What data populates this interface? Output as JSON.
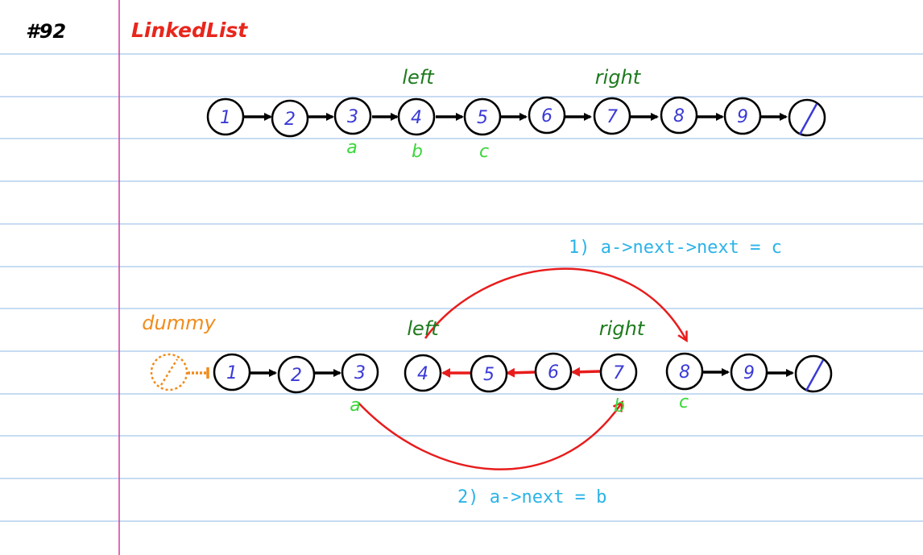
{
  "page_number": "#92",
  "title": "LinkedList",
  "colors": {
    "paper_line": "#8fb8e6",
    "margin_line": "#d63c9c",
    "title": "#e8261c",
    "node_text": "#3a3ad6",
    "green_label": "#1e7a1e",
    "pointer_label": "#3bd63b",
    "red_arrow": "#e81c1c",
    "dummy": "#f08c1c",
    "code": "#2bb3e8",
    "ink": "#000000"
  },
  "list1": {
    "nodes": [
      "1",
      "2",
      "3",
      "4",
      "5",
      "6",
      "7",
      "8",
      "9"
    ],
    "left_label": "left",
    "right_label": "right",
    "pointer_labels": [
      "a",
      "b",
      "c"
    ]
  },
  "list2": {
    "dummy_label": "dummy",
    "nodes": [
      "1",
      "2",
      "3",
      "4",
      "5",
      "6",
      "7",
      "8",
      "9"
    ],
    "left_label": "left",
    "right_label": "right",
    "pointer_labels": [
      "a",
      "b",
      "c"
    ],
    "step1": "1) a->next->next = c",
    "step2": "2) a->next = b"
  }
}
